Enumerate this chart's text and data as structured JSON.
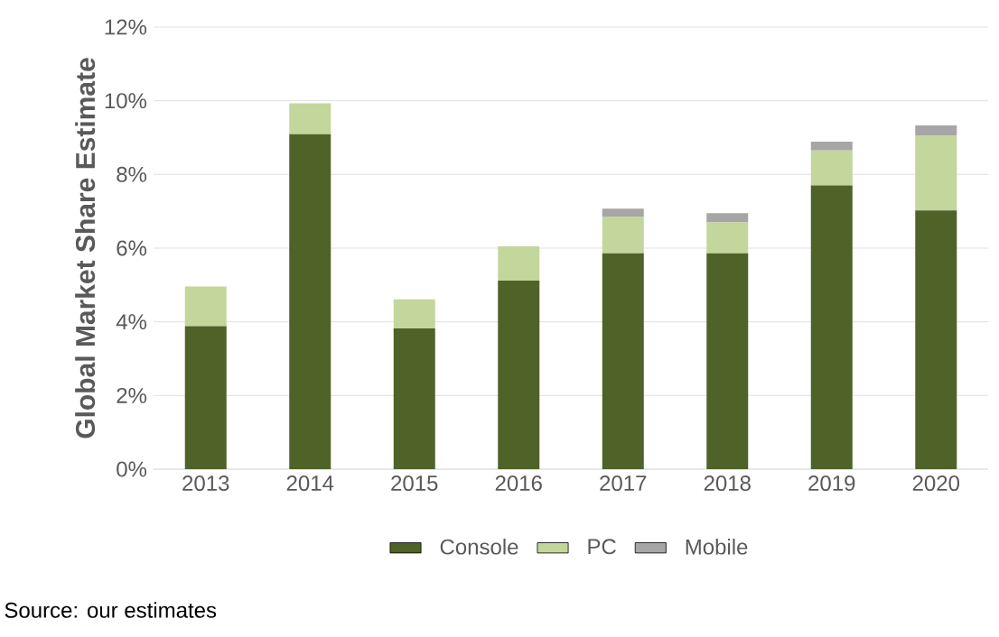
{
  "chart_data": {
    "type": "bar",
    "stacked": true,
    "ylabel": "Global Market Share Estimate",
    "categories": [
      "2013",
      "2014",
      "2015",
      "2016",
      "2017",
      "2018",
      "2019",
      "2020"
    ],
    "series": [
      {
        "name": "Console",
        "color": "#4f6228",
        "values": [
          3.88,
          9.09,
          3.82,
          5.12,
          5.86,
          5.86,
          7.7,
          7.02
        ]
      },
      {
        "name": "PC",
        "color": "#c3d69b",
        "values": [
          1.08,
          0.84,
          0.79,
          0.93,
          1.0,
          0.84,
          0.95,
          2.03
        ]
      },
      {
        "name": "Mobile",
        "color": "#a6a6a6",
        "values": [
          null,
          null,
          null,
          null,
          0.21,
          0.25,
          0.24,
          0.28
        ]
      }
    ],
    "ylim": [
      0,
      12
    ],
    "yticks": [
      {
        "value": 0,
        "label": "0%"
      },
      {
        "value": 2,
        "label": "2%"
      },
      {
        "value": 4,
        "label": "4%"
      },
      {
        "value": 6,
        "label": "6%"
      },
      {
        "value": 8,
        "label": "8%"
      },
      {
        "value": 10,
        "label": "10%"
      },
      {
        "value": 12,
        "label": "12%"
      }
    ],
    "grid": "y",
    "legend": "bottom",
    "annotations": [
      "Source: our estimates"
    ]
  }
}
